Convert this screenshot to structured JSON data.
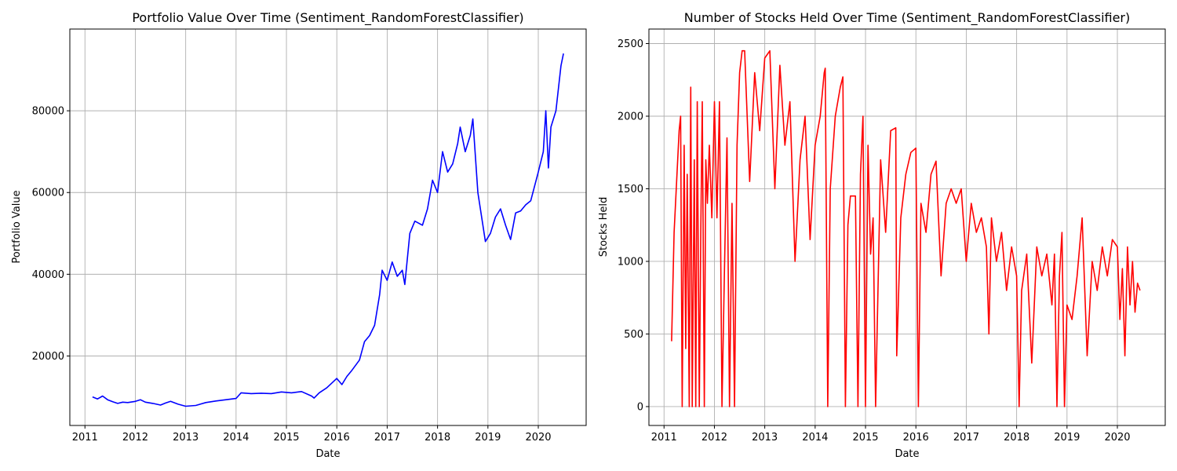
{
  "chart_data": [
    {
      "type": "line",
      "title": "Portfolio Value Over Time (Sentiment_RandomForestClassifier)",
      "xlabel": "Date",
      "ylabel": "Portfolio Value",
      "xlim": [
        2010.7,
        2020.95
      ],
      "ylim": [
        3000,
        100000
      ],
      "xticks": [
        2011,
        2012,
        2013,
        2014,
        2015,
        2016,
        2017,
        2018,
        2019,
        2020
      ],
      "yticks": [
        20000,
        40000,
        60000,
        80000
      ],
      "grid": true,
      "color": "#0000ff",
      "series": [
        {
          "x": [
            2011.15,
            2011.25,
            2011.35,
            2011.45,
            2011.55,
            2011.65,
            2011.75,
            2011.85,
            2012.0,
            2012.1,
            2012.2,
            2012.35,
            2012.5,
            2012.6,
            2012.7,
            2012.85,
            2013.0,
            2013.2,
            2013.4,
            2013.6,
            2013.8,
            2014.0,
            2014.1,
            2014.3,
            2014.5,
            2014.7,
            2014.9,
            2015.1,
            2015.3,
            2015.5,
            2015.55,
            2015.65,
            2015.8,
            2016.0,
            2016.1,
            2016.2,
            2016.3,
            2016.45,
            2016.55,
            2016.65,
            2016.75,
            2016.85,
            2016.9,
            2017.0,
            2017.1,
            2017.2,
            2017.3,
            2017.35,
            2017.45,
            2017.55,
            2017.7,
            2017.8,
            2017.9,
            2018.0,
            2018.1,
            2018.2,
            2018.3,
            2018.4,
            2018.45,
            2018.55,
            2018.65,
            2018.7,
            2018.8,
            2018.9,
            2018.95,
            2019.05,
            2019.15,
            2019.25,
            2019.35,
            2019.45,
            2019.55,
            2019.65,
            2019.75,
            2019.85,
            2020.0,
            2020.1,
            2020.15,
            2020.2,
            2020.25,
            2020.35,
            2020.45,
            2020.5
          ],
          "y": [
            10000,
            9500,
            10200,
            9300,
            8800,
            8400,
            8700,
            8600,
            8900,
            9300,
            8700,
            8400,
            8000,
            8500,
            8900,
            8200,
            7700,
            7900,
            8600,
            9000,
            9300,
            9600,
            11000,
            10800,
            10900,
            10800,
            11200,
            11000,
            11300,
            10200,
            9700,
            11000,
            12200,
            14500,
            13000,
            15000,
            16500,
            19000,
            23500,
            25000,
            27500,
            35000,
            41000,
            38500,
            43000,
            39500,
            41000,
            37500,
            50000,
            53000,
            52000,
            56000,
            63000,
            60000,
            70000,
            65000,
            67000,
            72000,
            76000,
            70000,
            74000,
            78000,
            60000,
            52000,
            48000,
            50000,
            54000,
            56000,
            52000,
            48500,
            55000,
            55500,
            57000,
            58000,
            65000,
            70000,
            80000,
            66000,
            76000,
            80000,
            91000,
            94000
          ]
        }
      ]
    },
    {
      "type": "line",
      "title": "Number of Stocks Held Over Time (Sentiment_RandomForestClassifier)",
      "xlabel": "Date",
      "ylabel": "Stocks Held",
      "xlim": [
        2010.7,
        2020.95
      ],
      "ylim": [
        -130,
        2600
      ],
      "xticks": [
        2011,
        2012,
        2013,
        2014,
        2015,
        2016,
        2017,
        2018,
        2019,
        2020
      ],
      "yticks": [
        0,
        500,
        1000,
        1500,
        2000,
        2500
      ],
      "grid": true,
      "color": "#ff0000",
      "series": [
        {
          "x": [
            2011.15,
            2011.2,
            2011.25,
            2011.3,
            2011.33,
            2011.36,
            2011.4,
            2011.43,
            2011.46,
            2011.5,
            2011.53,
            2011.56,
            2011.6,
            2011.63,
            2011.66,
            2011.7,
            2011.73,
            2011.76,
            2011.8,
            2011.83,
            2011.86,
            2011.9,
            2011.95,
            2012.0,
            2012.05,
            2012.1,
            2012.15,
            2012.2,
            2012.25,
            2012.3,
            2012.35,
            2012.4,
            2012.45,
            2012.5,
            2012.55,
            2012.6,
            2012.7,
            2012.8,
            2012.9,
            2013.0,
            2013.1,
            2013.2,
            2013.3,
            2013.4,
            2013.5,
            2013.6,
            2013.7,
            2013.8,
            2013.9,
            2014.0,
            2014.1,
            2014.18,
            2014.2,
            2014.25,
            2014.3,
            2014.4,
            2014.5,
            2014.55,
            2014.6,
            2014.65,
            2014.7,
            2014.8,
            2014.85,
            2014.9,
            2014.95,
            2015.0,
            2015.05,
            2015.1,
            2015.15,
            2015.2,
            2015.3,
            2015.4,
            2015.5,
            2015.6,
            2015.62,
            2015.65,
            2015.7,
            2015.8,
            2015.9,
            2016.0,
            2016.05,
            2016.1,
            2016.2,
            2016.3,
            2016.4,
            2016.5,
            2016.6,
            2016.7,
            2016.8,
            2016.9,
            2017.0,
            2017.1,
            2017.2,
            2017.3,
            2017.4,
            2017.45,
            2017.5,
            2017.6,
            2017.7,
            2017.8,
            2017.9,
            2018.0,
            2018.05,
            2018.1,
            2018.2,
            2018.3,
            2018.4,
            2018.5,
            2018.6,
            2018.7,
            2018.75,
            2018.8,
            2018.85,
            2018.9,
            2018.95,
            2019.0,
            2019.1,
            2019.2,
            2019.3,
            2019.4,
            2019.5,
            2019.6,
            2019.7,
            2019.8,
            2019.9,
            2020.0,
            2020.05,
            2020.1,
            2020.15,
            2020.2,
            2020.25,
            2020.3,
            2020.35,
            2020.4,
            2020.45
          ],
          "y": [
            450,
            1200,
            1550,
            1900,
            2000,
            0,
            1800,
            400,
            1600,
            0,
            2200,
            0,
            1700,
            0,
            2100,
            0,
            1200,
            2100,
            0,
            1700,
            1400,
            1800,
            1300,
            2100,
            1300,
            2100,
            0,
            950,
            1850,
            0,
            1400,
            0,
            1800,
            2300,
            2450,
            2450,
            1550,
            2300,
            1900,
            2400,
            2450,
            1500,
            2350,
            1800,
            2100,
            1000,
            1700,
            2000,
            1150,
            1800,
            2000,
            2300,
            2330,
            0,
            1500,
            2000,
            2200,
            2270,
            0,
            1250,
            1450,
            1450,
            0,
            1600,
            2000,
            0,
            1800,
            1050,
            1300,
            0,
            1700,
            1200,
            1900,
            1920,
            350,
            700,
            1300,
            1600,
            1750,
            1780,
            0,
            1400,
            1200,
            1600,
            1690,
            900,
            1400,
            1500,
            1400,
            1500,
            1000,
            1400,
            1200,
            1300,
            1100,
            500,
            1300,
            1000,
            1200,
            800,
            1100,
            900,
            0,
            800,
            1050,
            300,
            1100,
            900,
            1050,
            700,
            1050,
            0,
            900,
            1200,
            0,
            700,
            600,
            900,
            1300,
            350,
            1000,
            800,
            1100,
            900,
            1150,
            1100,
            600,
            950,
            350,
            1100,
            700,
            1000,
            650,
            850,
            800
          ]
        }
      ]
    }
  ]
}
